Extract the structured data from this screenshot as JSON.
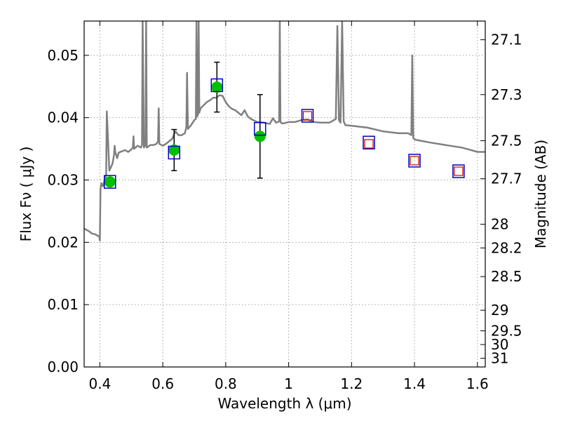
{
  "chart_data": {
    "type": "scatter",
    "xlabel": "Wavelength  λ (μm)",
    "ylabel": "Flux  Fν  ( μJy )",
    "y2label": "Magnitude (AB)",
    "xlim": [
      0.35,
      1.625
    ],
    "ylim": [
      0.0,
      0.0555
    ],
    "grid": true,
    "x_ticks": [
      0.4,
      0.6,
      0.8,
      1.0,
      1.2,
      1.4,
      1.6
    ],
    "x_tick_labels": [
      "0.4",
      "0.6",
      "0.8",
      "1",
      "1.2",
      "1.4",
      "1.6"
    ],
    "y_ticks": [
      0.0,
      0.01,
      0.02,
      0.03,
      0.04,
      0.05
    ],
    "y_tick_labels": [
      "0.00",
      "0.01",
      "0.02",
      "0.03",
      "0.04",
      "0.05"
    ],
    "y2_ticks": [
      {
        "label": "27.1",
        "flux": 0.0525
      },
      {
        "label": "27.3",
        "flux": 0.0437
      },
      {
        "label": "27.5",
        "flux": 0.0363
      },
      {
        "label": "27.7",
        "flux": 0.0302
      },
      {
        "label": "28",
        "flux": 0.0229
      },
      {
        "label": "28.2",
        "flux": 0.0191
      },
      {
        "label": "28.5",
        "flux": 0.0145
      },
      {
        "label": "29",
        "flux": 0.0091
      },
      {
        "label": "29.5",
        "flux": 0.0058
      },
      {
        "label": "30",
        "flux": 0.0036
      },
      {
        "label": "31",
        "flux": 0.0014
      }
    ],
    "colors": {
      "sed": "#808080",
      "observed": "#00c000",
      "model_box": "#0000cc",
      "ir_box": "#cc0000",
      "grid": "#a0a0a0"
    },
    "sed_model": {
      "x": [
        0.35,
        0.365,
        0.375,
        0.385,
        0.395,
        0.398,
        0.4,
        0.402,
        0.405,
        0.41,
        0.418,
        0.42,
        0.422,
        0.43,
        0.44,
        0.445,
        0.447,
        0.449,
        0.455,
        0.46,
        0.47,
        0.48,
        0.49,
        0.5,
        0.505,
        0.507,
        0.509,
        0.52,
        0.53,
        0.534,
        0.536,
        0.54,
        0.545,
        0.547,
        0.549,
        0.555,
        0.56,
        0.57,
        0.58,
        0.585,
        0.587,
        0.589,
        0.6,
        0.61,
        0.62,
        0.63,
        0.64,
        0.65,
        0.66,
        0.67,
        0.675,
        0.677,
        0.68,
        0.69,
        0.7,
        0.705,
        0.707,
        0.709,
        0.712,
        0.714,
        0.716,
        0.72,
        0.73,
        0.74,
        0.75,
        0.76,
        0.77,
        0.78,
        0.79,
        0.8,
        0.81,
        0.82,
        0.83,
        0.84,
        0.85,
        0.86,
        0.87,
        0.88,
        0.9,
        0.92,
        0.94,
        0.95,
        0.96,
        0.97,
        0.972,
        0.974,
        0.976,
        0.978,
        0.985,
        1.0,
        1.02,
        1.04,
        1.06,
        1.08,
        1.1,
        1.12,
        1.13,
        1.15,
        1.155,
        1.16,
        1.165,
        1.17,
        1.175,
        1.18,
        1.2,
        1.25,
        1.3,
        1.35,
        1.38,
        1.39,
        1.393,
        1.396,
        1.4,
        1.42,
        1.45,
        1.5,
        1.55,
        1.58,
        1.6,
        1.625
      ],
      "y": [
        0.0222,
        0.0218,
        0.0214,
        0.0213,
        0.021,
        0.021,
        0.0203,
        0.0285,
        0.0295,
        0.029,
        0.0305,
        0.0308,
        0.041,
        0.0315,
        0.0326,
        0.034,
        0.0355,
        0.0345,
        0.0335,
        0.0344,
        0.0346,
        0.0348,
        0.0345,
        0.0349,
        0.0352,
        0.037,
        0.035,
        0.0355,
        0.0352,
        0.0356,
        0.0555,
        0.0352,
        0.0356,
        0.0555,
        0.0352,
        0.0354,
        0.0356,
        0.0356,
        0.0358,
        0.0362,
        0.0415,
        0.0358,
        0.0355,
        0.0358,
        0.0362,
        0.0366,
        0.0378,
        0.0372,
        0.0372,
        0.0375,
        0.0385,
        0.0472,
        0.0382,
        0.0388,
        0.0396,
        0.0398,
        0.0555,
        0.0402,
        0.0405,
        0.0555,
        0.0408,
        0.0415,
        0.042,
        0.0425,
        0.0428,
        0.0432,
        0.0432,
        0.0436,
        0.0435,
        0.0425,
        0.0418,
        0.0414,
        0.0412,
        0.0408,
        0.0404,
        0.0412,
        0.0402,
        0.0398,
        0.0393,
        0.0392,
        0.039,
        0.0399,
        0.0392,
        0.0394,
        0.0555,
        0.0394,
        0.0392,
        0.0391,
        0.0391,
        0.0393,
        0.0393,
        0.0396,
        0.0397,
        0.0393,
        0.0392,
        0.0392,
        0.0392,
        0.0398,
        0.0547,
        0.0396,
        0.0392,
        0.0555,
        0.0394,
        0.0388,
        0.0387,
        0.0384,
        0.0378,
        0.0375,
        0.0375,
        0.0372,
        0.05,
        0.0368,
        0.0365,
        0.0363,
        0.036,
        0.0356,
        0.0352,
        0.0348,
        0.0345,
        0.0345
      ]
    },
    "observed": [
      {
        "x": 0.432,
        "y": 0.0297
      },
      {
        "x": 0.636,
        "y": 0.0348,
        "yerr": 0.0033
      },
      {
        "x": 0.772,
        "y": 0.0449,
        "yerr": 0.004
      },
      {
        "x": 0.909,
        "y": 0.037,
        "yerr": 0.0067
      }
    ],
    "model_boxes": [
      {
        "x": 0.432,
        "y": 0.0297
      },
      {
        "x": 0.636,
        "y": 0.0344
      },
      {
        "x": 0.772,
        "y": 0.0452
      },
      {
        "x": 0.909,
        "y": 0.0382
      },
      {
        "x": 1.06,
        "y": 0.0403
      },
      {
        "x": 1.255,
        "y": 0.036
      },
      {
        "x": 1.4,
        "y": 0.0331
      },
      {
        "x": 1.54,
        "y": 0.0314
      }
    ],
    "ir_boxes": [
      {
        "x": 1.06,
        "y": 0.0403
      },
      {
        "x": 1.255,
        "y": 0.0358
      },
      {
        "x": 1.4,
        "y": 0.0331
      },
      {
        "x": 1.54,
        "y": 0.0314
      }
    ]
  }
}
